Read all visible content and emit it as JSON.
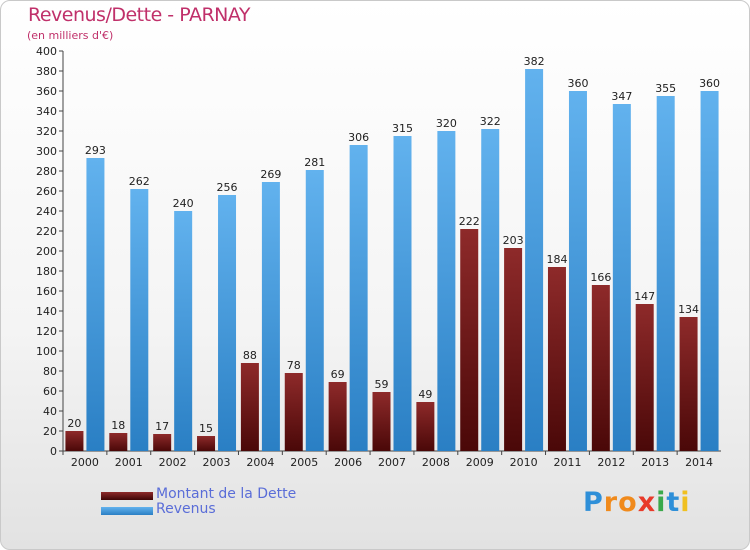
{
  "header": {
    "title": "Revenus/Dette - PARNAY",
    "subtitle": "(en milliers d'€)"
  },
  "colors": {
    "dette": "#7a1e1e",
    "revenus": "#4a9ee0",
    "axis_text": "#222222",
    "title": "#c0306a"
  },
  "chart_data": {
    "type": "bar",
    "title": "Revenus/Dette - PARNAY",
    "subtitle": "(en milliers d'€)",
    "categories": [
      "2000",
      "2001",
      "2002",
      "2003",
      "2004",
      "2005",
      "2006",
      "2007",
      "2008",
      "2009",
      "2010",
      "2011",
      "2012",
      "2013",
      "2014"
    ],
    "series": [
      {
        "name": "Montant de la Dette",
        "values": [
          20,
          18,
          17,
          15,
          88,
          78,
          69,
          59,
          49,
          222,
          203,
          184,
          166,
          147,
          134
        ]
      },
      {
        "name": "Revenus",
        "values": [
          293,
          262,
          240,
          256,
          269,
          281,
          306,
          315,
          320,
          322,
          382,
          360,
          347,
          355,
          360
        ]
      }
    ],
    "ylim": [
      0,
      400
    ],
    "ytick_step": 20,
    "grid": false,
    "legend_position": "bottom-left"
  },
  "legend": {
    "items": [
      {
        "label": "Montant de la Dette",
        "color": "#7a1e1e"
      },
      {
        "label": "Revenus",
        "color": "#4a9ee0"
      }
    ]
  },
  "logo": {
    "letters": [
      "P",
      "r",
      "o",
      "x",
      "i",
      "t",
      "i"
    ],
    "colors": [
      "#2e8fd8",
      "#f08a1c",
      "#f08a1c",
      "#e83a2a",
      "#3aa94b",
      "#2e8fd8",
      "#f0c020"
    ]
  }
}
